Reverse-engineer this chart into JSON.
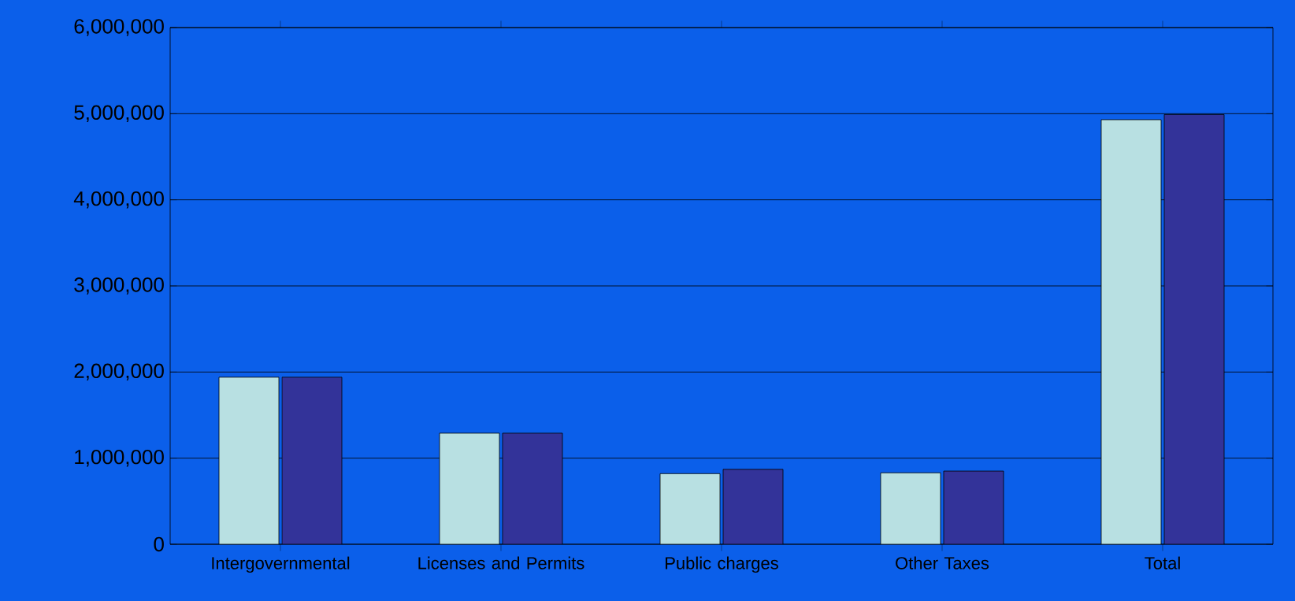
{
  "chart_data": {
    "type": "bar",
    "categories": [
      "Intergovernmental",
      "Licenses and Permits",
      "Public charges",
      "Other Taxes",
      "Total"
    ],
    "series": [
      {
        "color": "#b8e0e2",
        "values": [
          1940000,
          1290000,
          820000,
          830000,
          4930000
        ]
      },
      {
        "color": "#333399",
        "values": [
          1940000,
          1290000,
          870000,
          850000,
          4990000
        ]
      }
    ],
    "ylim": [
      0,
      6000000
    ],
    "yticks": [
      {
        "value": 0,
        "label": "0"
      },
      {
        "value": 1000000,
        "label": "1,000,000"
      },
      {
        "value": 2000000,
        "label": "2,000,000"
      },
      {
        "value": 3000000,
        "label": "3,000,000"
      },
      {
        "value": 4000000,
        "label": "4,000,000"
      },
      {
        "value": 5000000,
        "label": "5,000,000"
      },
      {
        "value": 6000000,
        "label": "6,000,000"
      }
    ],
    "grid": "y"
  }
}
